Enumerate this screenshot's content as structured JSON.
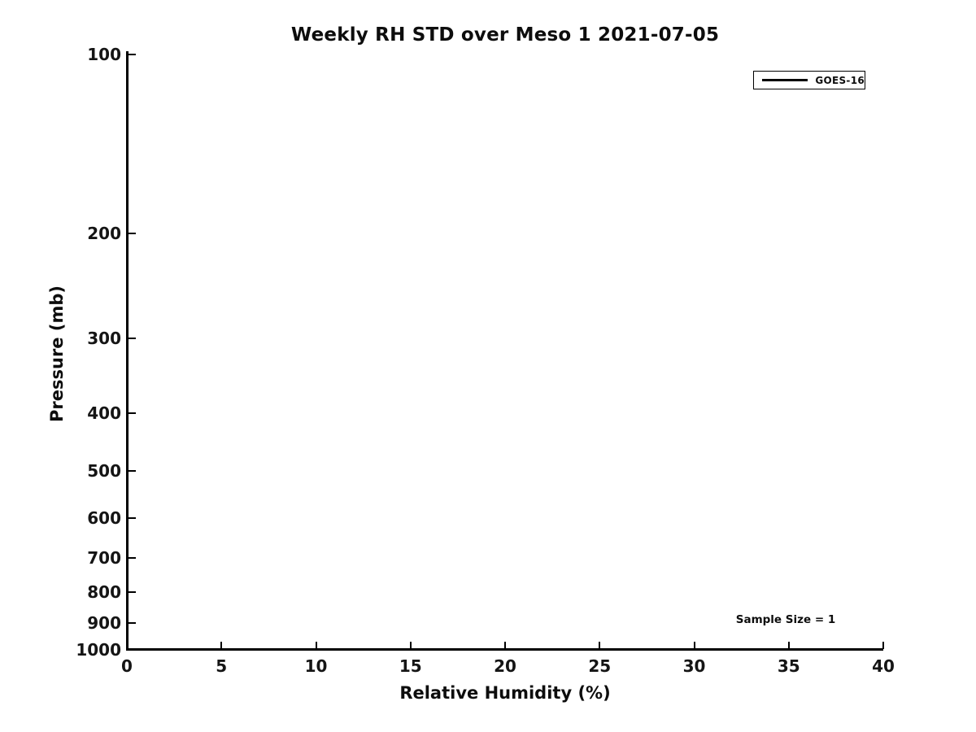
{
  "chart_data": {
    "type": "line",
    "title": "Weekly RH STD over Meso 1 2021-07-05",
    "xlabel": "Relative Humidity (%)",
    "ylabel": "Pressure (mb)",
    "xlim": [
      0,
      40
    ],
    "x_ticks": [
      0,
      5,
      10,
      15,
      20,
      25,
      30,
      35,
      40
    ],
    "ylim": [
      100,
      1000
    ],
    "y_ticks": [
      100,
      200,
      300,
      400,
      500,
      600,
      700,
      800,
      900,
      1000
    ],
    "y_scale": "log",
    "y_axis_inverted": true,
    "grid": false,
    "tick_direction": "in",
    "legend_position": "upper right",
    "series": [
      {
        "name": "GOES-16",
        "color": "#000000",
        "line_width": 3,
        "x": [],
        "y": []
      }
    ],
    "annotation": "Sample Size = 1",
    "axis_color": "#000000",
    "text_color": "#111111",
    "background": "#ffffff"
  }
}
